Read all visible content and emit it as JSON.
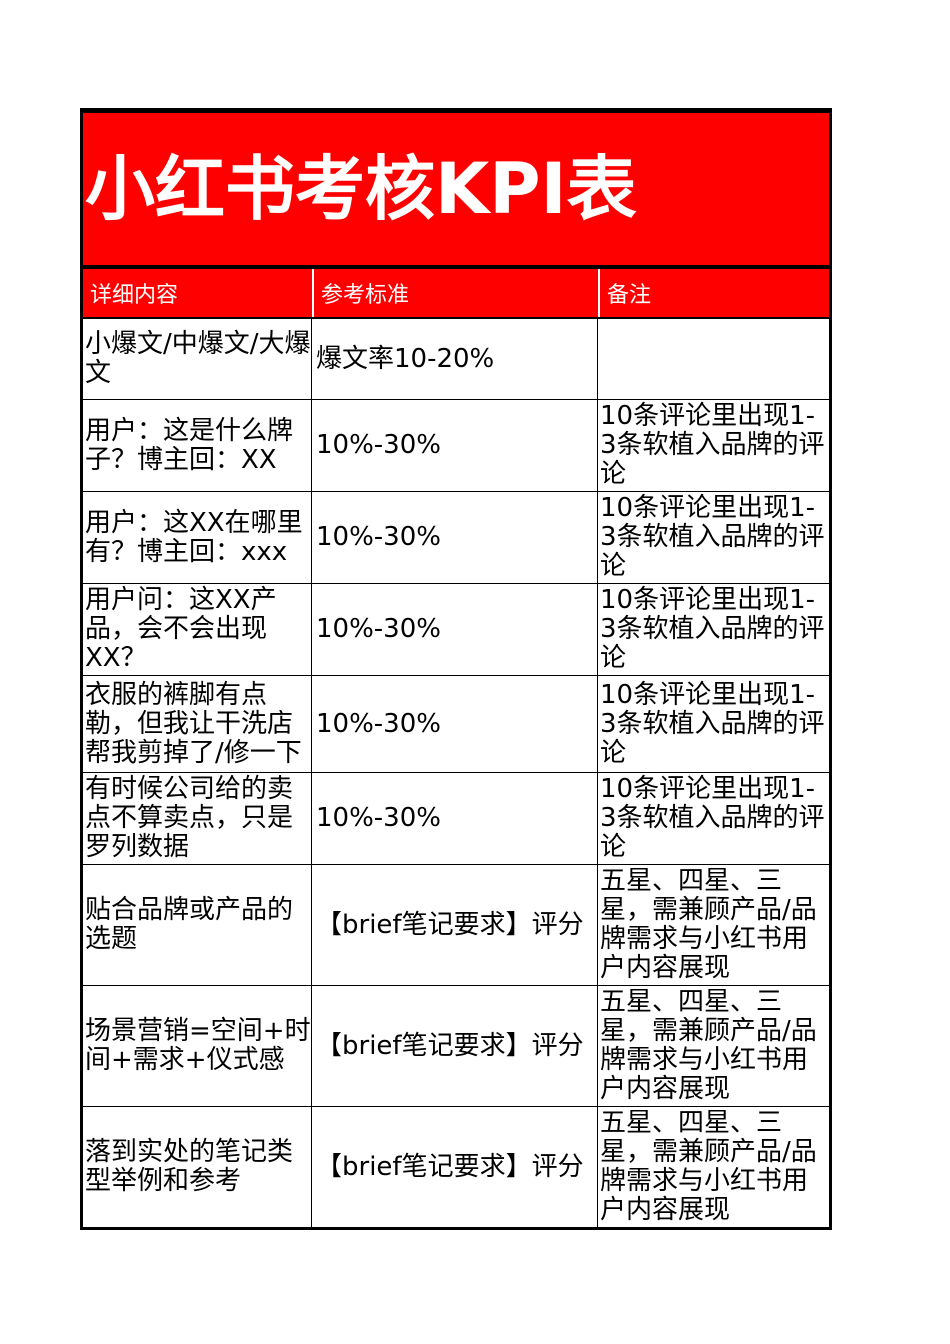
{
  "colors": {
    "accent_red": "#ff0000",
    "grid_black": "#000000",
    "header_text": "#ffffff",
    "body_text": "#000000",
    "page_background": "#ffffff"
  },
  "banner": {
    "title": "小红书考核KPI表"
  },
  "table": {
    "headers": [
      "详细内容",
      "参考标准",
      "备注"
    ],
    "rows": [
      {
        "content": "小爆文/中爆文/大爆文",
        "standard": "爆文率10-20%",
        "note": ""
      },
      {
        "content": "用户：这是什么牌子？博主回：XX",
        "standard": "10%-30%",
        "note": "10条评论里出现1-3条软植入品牌的评论"
      },
      {
        "content": "用户：这XX在哪里有？博主回：xxx",
        "standard": "10%-30%",
        "note": "10条评论里出现1-3条软植入品牌的评论"
      },
      {
        "content": "用户问：这XX产品，会不会出现XX？",
        "standard": "10%-30%",
        "note": "10条评论里出现1-3条软植入品牌的评论"
      },
      {
        "content": "衣服的裤脚有点勒，但我让干洗店帮我剪掉了/修一下",
        "standard": "10%-30%",
        "note": "10条评论里出现1-3条软植入品牌的评论"
      },
      {
        "content": "有时候公司给的卖点不算卖点，只是罗列数据",
        "standard": "10%-30%",
        "note": "10条评论里出现1-3条软植入品牌的评论"
      },
      {
        "content": "贴合品牌或产品的选题",
        "standard": "【brief笔记要求】评分",
        "note": "五星、四星、三星，需兼顾产品/品牌需求与小红书用户内容展现"
      },
      {
        "content": "场景营销=空间+时间+需求+仪式感",
        "standard": "【brief笔记要求】评分",
        "note": "五星、四星、三星，需兼顾产品/品牌需求与小红书用户内容展现"
      },
      {
        "content": "落到实处的笔记类型举例和参考",
        "standard": "【brief笔记要求】评分",
        "note": "五星、四星、三星，需兼顾产品/品牌需求与小红书用户内容展现"
      }
    ]
  }
}
